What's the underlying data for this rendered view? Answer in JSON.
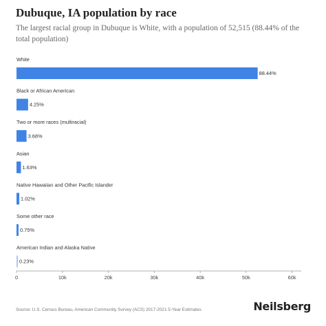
{
  "chart_data": {
    "type": "bar",
    "orientation": "horizontal",
    "title": "Dubuque, IA population by race",
    "subtitle": "The largest racial group in Dubuque is White, with a population of 52,515 (88.44% of the total population)",
    "categories": [
      "White",
      "Black or African American",
      "Two or more races (multiracial)",
      "Asian",
      "Native Hawaiian and Other Pacific Islander",
      "Some other race",
      "American Indian and Alaska Native"
    ],
    "values": [
      52515,
      2524,
      2185,
      968,
      606,
      445,
      137
    ],
    "value_labels": [
      "88.44%",
      "4.25%",
      "3.68%",
      "1.63%",
      "1.02%",
      "0.75%",
      "0.23%"
    ],
    "bar_colors": [
      "#3f84e5",
      "#3f84e5",
      "#3f84e5",
      "#3f84e5",
      "#3f84e5",
      "#3f84e5",
      "#a9c8f2"
    ],
    "xlim": [
      0,
      62000
    ],
    "xticks": [
      0,
      10000,
      20000,
      30000,
      40000,
      50000,
      60000
    ],
    "xtick_labels": [
      "0",
      "10k",
      "20k",
      "30k",
      "40k",
      "50k",
      "60k"
    ],
    "grid": false,
    "legend": "none"
  },
  "footer": {
    "source": "Source: U.S. Census Bureau, American Community Survey (ACS) 2017-2021 5-Year Estimates",
    "brand": "Neilsberg"
  }
}
